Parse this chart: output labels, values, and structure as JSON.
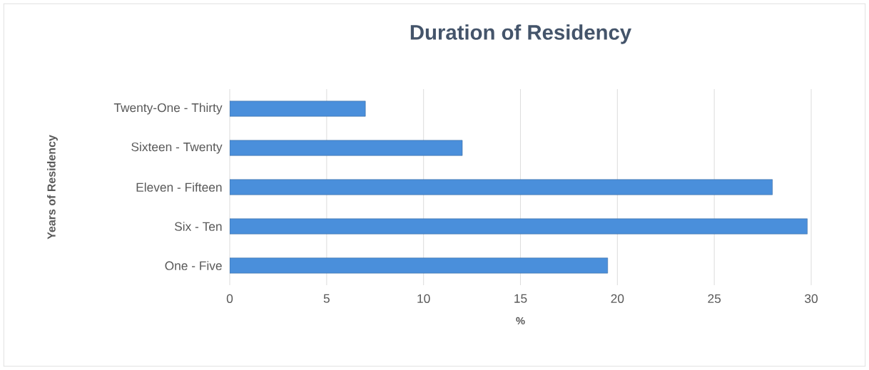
{
  "chart_data": {
    "type": "bar",
    "orientation": "horizontal",
    "title": "Duration of Residency",
    "xlabel": "%",
    "ylabel": "Years of Residency",
    "categories": [
      "Twenty-One - Thirty",
      "Sixteen - Twenty",
      "Eleven - Fifteen",
      "Six - Ten",
      "One - Five"
    ],
    "values": [
      7,
      12,
      28,
      29.8,
      19.5
    ],
    "color": "#4a8fdb",
    "xlim": [
      0,
      30
    ],
    "xticks": [
      0,
      5,
      10,
      15,
      20,
      25,
      30
    ],
    "grid": "x"
  }
}
